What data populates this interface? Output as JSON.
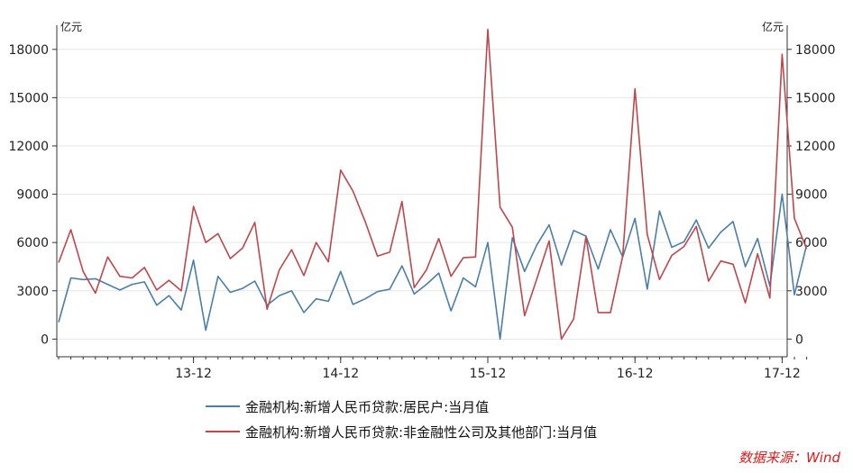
{
  "chart_data": {
    "type": "line",
    "left_unit": "亿元",
    "right_unit": "亿元",
    "ylim": [
      -1100,
      19500
    ],
    "y_ticks": [
      0,
      3000,
      6000,
      9000,
      12000,
      15000,
      18000
    ],
    "y_tick_labels": [
      "0",
      "3000",
      "6000",
      "9000",
      "12000",
      "15000",
      "18000"
    ],
    "x_tick_labels": [
      {
        "label": "13-12",
        "index": 11
      },
      {
        "label": "14-12",
        "index": 23
      },
      {
        "label": "15-12",
        "index": 35
      },
      {
        "label": "16-12",
        "index": 47
      },
      {
        "label": "17-12",
        "index": 59
      }
    ],
    "grid": true,
    "legend_position": "bottom",
    "series": [
      {
        "name": "金融机构:新增人民币贷款:居民户:当月值",
        "color": "#4a7eab",
        "values": [
          1050,
          3800,
          3700,
          3750,
          3400,
          3050,
          3400,
          3550,
          2100,
          2700,
          1800,
          4900,
          550,
          3900,
          2900,
          3150,
          3600,
          2100,
          2700,
          3000,
          1650,
          2500,
          2350,
          4200,
          2150,
          2500,
          2950,
          3100,
          4550,
          2800,
          3400,
          4100,
          1750,
          3800,
          3250,
          6000,
          0,
          6300,
          4200,
          5850,
          7100,
          4600,
          6750,
          6400,
          4350,
          6800,
          5100,
          7500,
          3100,
          7950,
          5700,
          6050,
          7400,
          5650,
          6650,
          7300,
          4500,
          6250,
          3300,
          9000,
          2750,
          5850
        ]
      },
      {
        "name": "金融机构:新增人民币贷款:非金融性公司及其他部门:当月值",
        "color": "#c0464b",
        "values": [
          4750,
          6800,
          4200,
          2850,
          5100,
          3900,
          3800,
          4450,
          3050,
          3650,
          3000,
          8250,
          6000,
          6550,
          5000,
          5650,
          7250,
          1850,
          4300,
          5550,
          3950,
          6000,
          4800,
          10500,
          9200,
          7300,
          5150,
          5400,
          8550,
          3200,
          4300,
          6250,
          3900,
          5050,
          5100,
          19250,
          8200,
          6950,
          1450,
          3750,
          6100,
          0,
          1250,
          6350,
          1650,
          1650,
          5150,
          15550,
          6500,
          3700,
          5200,
          5750,
          7000,
          3600,
          4850,
          4650,
          2250,
          5300,
          2550,
          17700,
          7500,
          5600
        ]
      }
    ]
  },
  "source": "数据来源：Wind"
}
